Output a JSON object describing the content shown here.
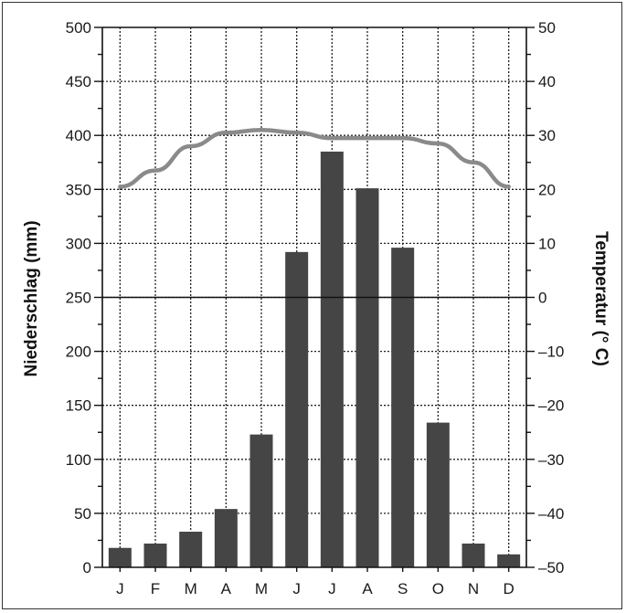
{
  "chart_data": {
    "type": "bar",
    "categories": [
      "J",
      "F",
      "M",
      "A",
      "M",
      "J",
      "J",
      "A",
      "S",
      "O",
      "N",
      "D"
    ],
    "series": [
      {
        "values": [
          18,
          22,
          33,
          54,
          123,
          292,
          385,
          351,
          296,
          134,
          22,
          12
        ],
        "kind": "bar",
        "axis": "left",
        "color": "#454545"
      },
      {
        "values": [
          20.5,
          23.5,
          28,
          30.5,
          31,
          30.5,
          29.5,
          29.5,
          29.5,
          28.5,
          25,
          20.5
        ],
        "kind": "line",
        "axis": "right",
        "color": "#8a8a8a"
      }
    ],
    "ylabel": "Niederschlag (mm)",
    "ylabel_right": "Temperatur (° C)",
    "ylim": [
      0,
      500
    ],
    "ylim_right": [
      -50,
      50
    ],
    "y_ticks": [
      "0",
      "50",
      "100",
      "150",
      "200",
      "250",
      "300",
      "350",
      "400",
      "450",
      "500"
    ],
    "y_ticks_right": [
      "–50",
      "–40",
      "–30",
      "–20",
      "–10",
      "0",
      "10",
      "20",
      "30",
      "40",
      "50"
    ],
    "grid": true,
    "zero_line_right": true
  }
}
